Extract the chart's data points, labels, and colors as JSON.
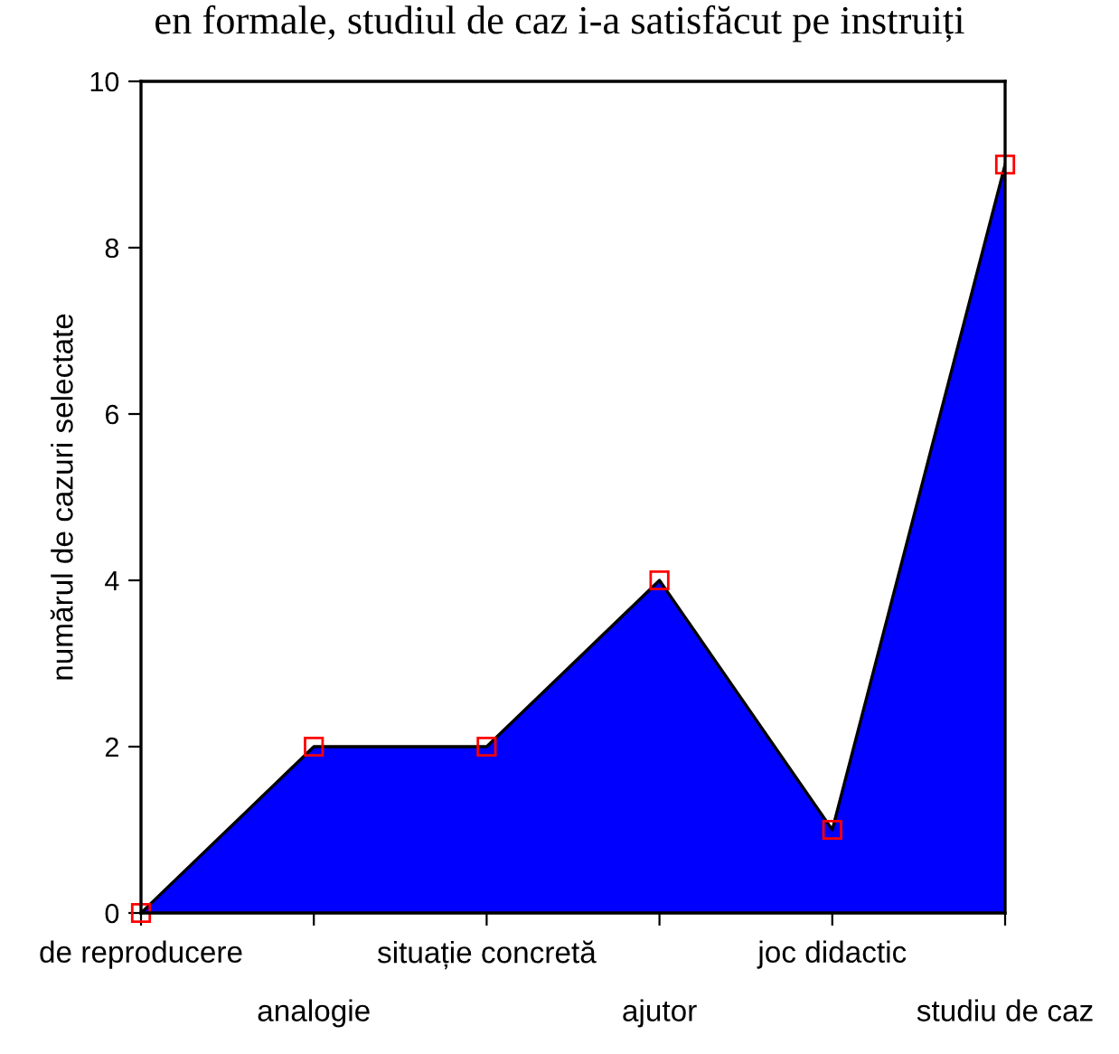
{
  "chart_data": {
    "type": "area",
    "title": "en formale, studiul de caz i-a satisfăcut pe instruiți",
    "categories": [
      "de reproducere",
      "analogie",
      "situație concretă",
      "ajutor",
      "joc didactic",
      "studiu de caz"
    ],
    "series": [
      {
        "color": "#0000ff",
        "values": [
          0,
          2,
          2,
          4,
          1,
          9
        ]
      }
    ],
    "ylabel": "numărul de cazuri selectate",
    "ylim": [
      0,
      10
    ],
    "yticks": [
      0,
      2,
      4,
      6,
      8,
      10
    ],
    "marker": "square",
    "grid": false,
    "legend": false
  }
}
